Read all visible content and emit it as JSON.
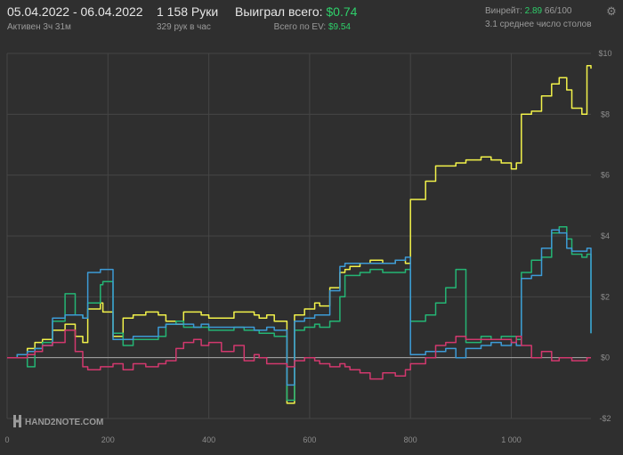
{
  "header": {
    "date_range": "05.04.2022 - 06.04.2022",
    "active_label": "Активен 3ч 31м",
    "hands": "1 158 Руки",
    "hands_per_hour": "329 рук в час",
    "won_label": "Выиграл всего:",
    "won_value": "$0.74",
    "ev_label": "Всего по EV:",
    "ev_value": "$9.54",
    "winrate_label": "Винрейт:",
    "winrate_value": "2.89",
    "winrate_sample": "66/100",
    "tables_label": "3.1 среднее число столов"
  },
  "watermark": "HAND2NOTE.COM",
  "colors": {
    "background": "#2f2f2f",
    "grid": "#454545",
    "zero_line": "#a8a8a8",
    "yellow": "#f2f24a",
    "green": "#24b574",
    "blue": "#3d9bd6",
    "red": "#d2386e",
    "accent_green": "#2fcf6a"
  },
  "chart_data": {
    "type": "line",
    "xlim": [
      0,
      1158
    ],
    "ylim": [
      -2,
      10
    ],
    "x_ticks": [
      0,
      200,
      400,
      600,
      800,
      1000
    ],
    "x_tick_labels": [
      "0",
      "200",
      "400",
      "600",
      "800",
      "1 000"
    ],
    "y_ticks": [
      -2,
      0,
      2,
      4,
      6,
      8,
      10
    ],
    "y_tick_labels": [
      "-$2",
      "$0",
      "$2",
      "$4",
      "$6",
      "$8",
      "$10"
    ],
    "grid": true,
    "series": [
      {
        "color": "#f2f24a",
        "x": [
          0,
          20,
          40,
          55,
          70,
          90,
          115,
          135,
          150,
          160,
          185,
          190,
          210,
          230,
          250,
          275,
          300,
          315,
          335,
          350,
          370,
          385,
          400,
          425,
          450,
          470,
          490,
          500,
          515,
          530,
          555,
          570,
          590,
          610,
          620,
          640,
          660,
          670,
          680,
          700,
          720,
          745,
          770,
          790,
          800,
          830,
          850,
          870,
          890,
          910,
          940,
          960,
          980,
          1000,
          1010,
          1020,
          1040,
          1060,
          1080,
          1095,
          1110,
          1120,
          1140,
          1150,
          1158
        ],
        "y": [
          0,
          0.1,
          0.3,
          0.5,
          0.6,
          0.9,
          1.1,
          0.7,
          0.5,
          1.6,
          1.8,
          1.5,
          0.7,
          1.3,
          1.4,
          1.5,
          1.4,
          1.2,
          1.1,
          1.5,
          1.5,
          1.4,
          1.3,
          1.3,
          1.5,
          1.5,
          1.4,
          1.3,
          1.4,
          1.2,
          -1.5,
          1.4,
          1.6,
          1.8,
          1.7,
          2.3,
          2.8,
          2.9,
          3.0,
          3.1,
          3.2,
          3.1,
          3.2,
          3.1,
          5.2,
          5.8,
          6.3,
          6.3,
          6.4,
          6.5,
          6.6,
          6.5,
          6.4,
          6.2,
          6.4,
          8.0,
          8.1,
          8.6,
          9.0,
          9.2,
          8.8,
          8.2,
          8.0,
          9.6,
          9.5
        ]
      },
      {
        "color": "#24b574",
        "x": [
          0,
          20,
          40,
          55,
          70,
          90,
          115,
          135,
          150,
          160,
          185,
          190,
          210,
          230,
          250,
          275,
          300,
          315,
          335,
          350,
          370,
          385,
          400,
          425,
          450,
          470,
          490,
          500,
          515,
          530,
          555,
          570,
          590,
          610,
          620,
          640,
          660,
          670,
          680,
          700,
          720,
          745,
          770,
          790,
          800,
          830,
          850,
          870,
          890,
          910,
          940,
          960,
          980,
          1000,
          1010,
          1020,
          1040,
          1060,
          1080,
          1095,
          1110,
          1120,
          1140,
          1150,
          1158
        ],
        "y": [
          0,
          0.1,
          -0.3,
          0.3,
          0.5,
          1.2,
          2.1,
          1.4,
          1.3,
          1.8,
          2.4,
          2.5,
          0.8,
          0.4,
          0.6,
          0.6,
          0.7,
          1.1,
          1.2,
          1.0,
          1.0,
          1.0,
          0.9,
          0.9,
          1.0,
          0.9,
          0.9,
          0.8,
          0.8,
          0.7,
          -1.4,
          0.9,
          1.0,
          1.1,
          1.0,
          1.2,
          2.0,
          2.7,
          2.7,
          2.8,
          2.9,
          2.8,
          2.8,
          2.9,
          1.2,
          1.4,
          1.8,
          2.3,
          2.9,
          0.5,
          0.7,
          0.6,
          0.7,
          0.7,
          0.6,
          2.8,
          3.2,
          3.3,
          4.1,
          4.3,
          3.9,
          3.4,
          3.3,
          3.4,
          0.8
        ]
      },
      {
        "color": "#3d9bd6",
        "x": [
          0,
          20,
          40,
          55,
          70,
          90,
          115,
          135,
          150,
          160,
          185,
          190,
          210,
          230,
          250,
          275,
          300,
          315,
          335,
          350,
          370,
          385,
          400,
          425,
          450,
          470,
          490,
          500,
          515,
          530,
          555,
          570,
          590,
          610,
          620,
          640,
          660,
          670,
          680,
          700,
          720,
          745,
          770,
          790,
          800,
          830,
          850,
          870,
          890,
          910,
          940,
          960,
          980,
          1000,
          1010,
          1020,
          1040,
          1060,
          1080,
          1095,
          1110,
          1120,
          1140,
          1150,
          1158
        ],
        "y": [
          0,
          0.1,
          0.2,
          0.3,
          0.4,
          1.3,
          1.4,
          1.4,
          1.3,
          2.8,
          2.9,
          2.9,
          0.6,
          0.6,
          0.7,
          0.7,
          1.0,
          1.1,
          1.1,
          1.1,
          1.0,
          1.1,
          1.0,
          1.0,
          1.0,
          1.0,
          0.9,
          0.9,
          1.0,
          0.9,
          -0.9,
          1.2,
          1.3,
          1.4,
          1.4,
          2.2,
          3.0,
          3.1,
          3.1,
          3.1,
          3.1,
          3.1,
          3.2,
          3.3,
          0.1,
          0.2,
          0.2,
          0.3,
          0.0,
          0.3,
          0.4,
          0.5,
          0.4,
          0.5,
          0.4,
          2.6,
          2.7,
          3.6,
          4.2,
          4.1,
          3.6,
          3.5,
          3.5,
          3.6,
          0.8
        ]
      },
      {
        "color": "#d2386e",
        "x": [
          0,
          20,
          40,
          55,
          70,
          90,
          115,
          135,
          150,
          160,
          185,
          190,
          210,
          230,
          250,
          275,
          300,
          315,
          335,
          350,
          370,
          385,
          400,
          425,
          450,
          470,
          490,
          500,
          515,
          530,
          555,
          570,
          590,
          610,
          620,
          640,
          660,
          670,
          680,
          700,
          720,
          745,
          770,
          790,
          800,
          830,
          850,
          870,
          890,
          910,
          940,
          960,
          980,
          1000,
          1010,
          1020,
          1040,
          1060,
          1080,
          1095,
          1110,
          1120,
          1140,
          1150,
          1158
        ],
        "y": [
          0,
          0.0,
          0.1,
          0.2,
          0.4,
          0.5,
          0.9,
          0.2,
          -0.3,
          -0.4,
          -0.3,
          -0.3,
          -0.2,
          -0.4,
          -0.2,
          -0.3,
          -0.2,
          -0.1,
          0.3,
          0.5,
          0.6,
          0.4,
          0.5,
          0.2,
          0.4,
          -0.1,
          0.1,
          0.0,
          -0.2,
          -0.2,
          -0.3,
          -0.1,
          0.0,
          -0.1,
          -0.2,
          -0.3,
          -0.2,
          -0.3,
          -0.4,
          -0.5,
          -0.7,
          -0.5,
          -0.6,
          -0.4,
          -0.2,
          0.0,
          0.4,
          0.5,
          0.7,
          0.6,
          0.6,
          0.6,
          0.6,
          0.5,
          0.7,
          0.4,
          0.0,
          0.2,
          -0.1,
          0.0,
          0.0,
          -0.1,
          -0.1,
          0.0,
          0.0
        ]
      }
    ]
  }
}
